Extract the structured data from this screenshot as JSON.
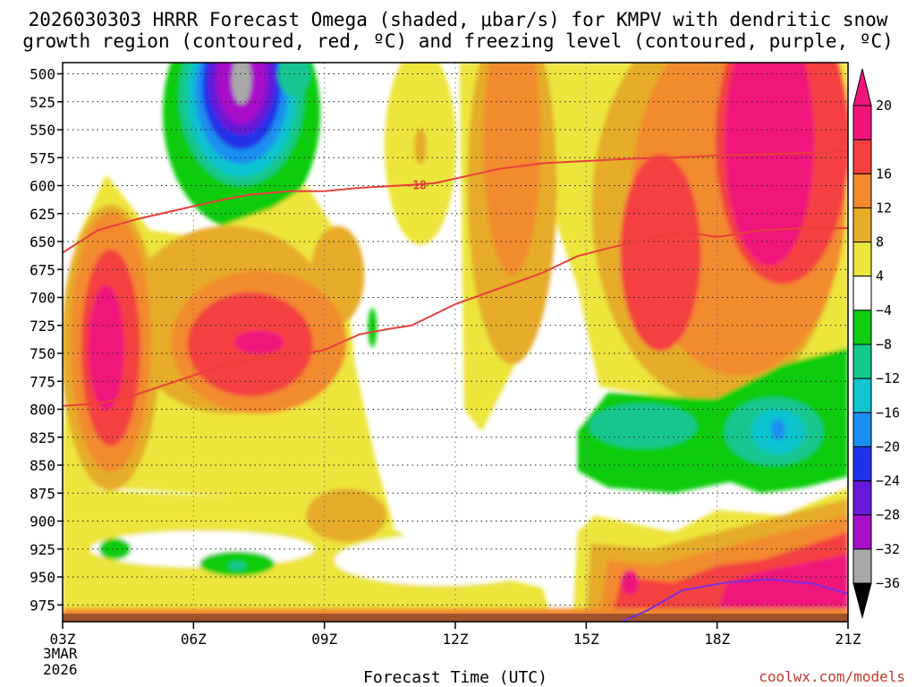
{
  "chart_data": {
    "type": "heatmap",
    "title_line1": "2026030303 HRRR Forecast Omega (shaded, μbar/s) for KMPV with dendritic snow",
    "title_line2": "growth region (contoured, red, ºC) and freezing level (contoured, purple, ºC)",
    "xlabel": "Forecast Time (UTC)",
    "source": "coolwx.com/models",
    "x_ticks": [
      {
        "value": 3,
        "label": "03Z"
      },
      {
        "value": 6,
        "label": "06Z"
      },
      {
        "value": 9,
        "label": "09Z"
      },
      {
        "value": 12,
        "label": "12Z"
      },
      {
        "value": 15,
        "label": "15Z"
      },
      {
        "value": 18,
        "label": "18Z"
      },
      {
        "value": 21,
        "label": "21Z"
      }
    ],
    "date_label_line1": "3MAR",
    "date_label_line2": "2026",
    "xlim": [
      3,
      21
    ],
    "ylim": [
      490,
      990
    ],
    "y_ticks": [
      500,
      525,
      550,
      575,
      600,
      625,
      650,
      675,
      700,
      725,
      750,
      775,
      800,
      825,
      850,
      875,
      900,
      925,
      950,
      975
    ],
    "colorbar": {
      "labels": [
        "20",
        "16",
        "12",
        "8",
        "4",
        "−4",
        "−8",
        "−12",
        "−16",
        "−20",
        "−24",
        "−28",
        "−32",
        "−36"
      ],
      "colors": [
        "#f0147c",
        "#f44040",
        "#f28a2e",
        "#e6ac2a",
        "#ece53a",
        "#ffffff",
        "#11cc11",
        "#14c890",
        "#10c4d0",
        "#1a8ef0",
        "#2032e8",
        "#6818d8",
        "#a810c8",
        "#a8a8a8"
      ]
    },
    "series": [
      {
        "name": "dendritic snow growth -18C",
        "color": "#e8403c",
        "label": "-18",
        "points": [
          [
            3,
            660
          ],
          [
            3.8,
            640
          ],
          [
            4.7,
            630
          ],
          [
            5.6,
            622
          ],
          [
            6.5,
            614
          ],
          [
            7.3,
            608
          ],
          [
            8.2,
            605
          ],
          [
            9,
            605
          ],
          [
            9.8,
            602
          ],
          [
            10.7,
            600
          ],
          [
            11.5,
            598
          ],
          [
            12.2,
            592
          ],
          [
            13,
            585
          ],
          [
            14,
            580
          ],
          [
            15,
            578
          ],
          [
            16,
            576
          ],
          [
            17,
            575
          ],
          [
            18,
            573
          ],
          [
            19,
            572
          ],
          [
            20,
            571
          ],
          [
            21,
            569
          ]
        ]
      },
      {
        "name": "dendritic snow growth -12C",
        "color": "#e8403c",
        "points": [
          [
            3,
            797
          ],
          [
            3.8,
            795
          ],
          [
            4.6,
            788
          ],
          [
            5.6,
            775
          ],
          [
            6.6,
            762
          ],
          [
            7.6,
            754
          ],
          [
            8.4,
            751
          ],
          [
            9,
            747
          ],
          [
            9.8,
            733
          ],
          [
            10.5,
            728
          ],
          [
            11,
            725
          ],
          [
            12,
            706
          ],
          [
            13,
            692
          ],
          [
            14,
            678
          ],
          [
            14.8,
            663
          ],
          [
            15.6,
            655
          ],
          [
            16.4,
            648
          ],
          [
            17.2,
            641
          ],
          [
            18,
            646
          ],
          [
            19,
            640
          ],
          [
            20,
            638
          ],
          [
            21,
            638
          ]
        ]
      },
      {
        "name": "freezing level",
        "color": "#7a2ee0",
        "points": [
          [
            15.8,
            990
          ],
          [
            16.4,
            980
          ],
          [
            17.2,
            962
          ],
          [
            18.2,
            955
          ],
          [
            19.2,
            952
          ],
          [
            20.2,
            956
          ],
          [
            21,
            965
          ]
        ]
      }
    ]
  }
}
